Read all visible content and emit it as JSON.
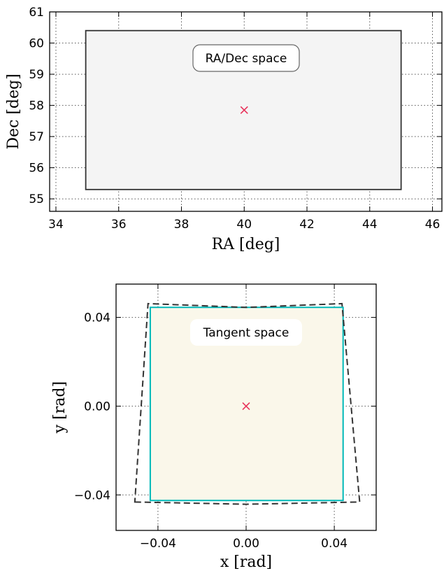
{
  "colors": {
    "ra_dec_fill": "#f4f4f4",
    "ra_dec_edge": "#333333",
    "tangent_fill": "#faf7ea",
    "tangent_edge": "#00b8b8",
    "projected_edge": "#333333",
    "center_marker": "#e8325a"
  },
  "chart_data": [
    {
      "type": "scatter",
      "title": "",
      "xlabel": "RA [deg]",
      "ylabel": "Dec [deg]",
      "xlim": [
        33.8,
        46.3
      ],
      "ylim": [
        54.6,
        61.0
      ],
      "xticks": [
        34,
        36,
        38,
        40,
        42,
        44,
        46
      ],
      "yticks": [
        55,
        56,
        57,
        58,
        59,
        60,
        61
      ],
      "xtick_labels": [
        "34",
        "36",
        "38",
        "40",
        "42",
        "44",
        "46"
      ],
      "ytick_labels": [
        "55",
        "56",
        "57",
        "58",
        "59",
        "60",
        "61"
      ],
      "grid": true,
      "annotation": "RA/Dec space",
      "region": {
        "ra_min": 34.95,
        "ra_max": 45.0,
        "dec_min": 55.3,
        "dec_max": 60.4
      },
      "center": {
        "x": 40.0,
        "y": 57.85
      }
    },
    {
      "type": "scatter",
      "title": "",
      "xlabel": "x [rad]",
      "ylabel": "y [rad]",
      "xlim": [
        -0.059,
        0.059
      ],
      "ylim": [
        -0.056,
        0.055
      ],
      "xticks": [
        -0.04,
        0.0,
        0.04
      ],
      "yticks": [
        -0.04,
        0.0,
        0.04
      ],
      "xtick_labels": [
        "−0.04",
        "0.00",
        "0.04"
      ],
      "ytick_labels": [
        "−0.04",
        "0.00",
        "0.04"
      ],
      "grid": true,
      "annotation": "Tangent space",
      "tangent_region": [
        [
          -0.0435,
          -0.0425
        ],
        [
          0.044,
          -0.0425
        ],
        [
          0.044,
          0.0445
        ],
        [
          -0.0435,
          0.0445
        ]
      ],
      "projected_region": [
        [
          -0.0505,
          -0.0432
        ],
        [
          0.0,
          -0.0442
        ],
        [
          0.0515,
          -0.0432
        ],
        [
          0.0435,
          0.0462
        ],
        [
          0.0,
          0.0445
        ],
        [
          -0.0445,
          0.0462
        ]
      ],
      "center": {
        "x": 0.0,
        "y": 0.0
      }
    }
  ]
}
